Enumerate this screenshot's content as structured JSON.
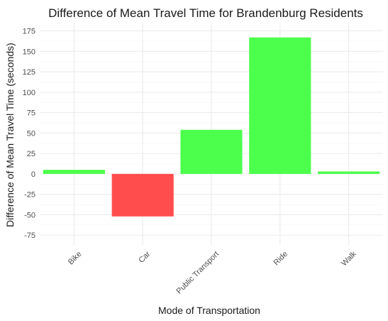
{
  "chart_data": {
    "type": "bar",
    "title": "Difference of Mean Travel Time for Brandenburg Residents",
    "xlabel": "Mode of Transportation",
    "ylabel": "Difference of Mean Travel Time (seconds)",
    "categories": [
      "Bike",
      "Car",
      "Public Transport",
      "Ride",
      "Walk"
    ],
    "values": [
      5,
      -52,
      54,
      167,
      3
    ],
    "ylim": [
      -87,
      185
    ],
    "yticks": [
      -75,
      -50,
      -25,
      0,
      25,
      50,
      75,
      100,
      125,
      150,
      175
    ],
    "ytick_labels": [
      "-75",
      "-50",
      "-25",
      "0",
      "25",
      "50",
      "75",
      "100",
      "125",
      "150",
      "175"
    ],
    "grid": true,
    "colors": {
      "positive": "#4dff4d",
      "negative": "#ff4d4d",
      "grid_major": "#ebebeb",
      "grid_minor": "#f5f5f5"
    }
  }
}
